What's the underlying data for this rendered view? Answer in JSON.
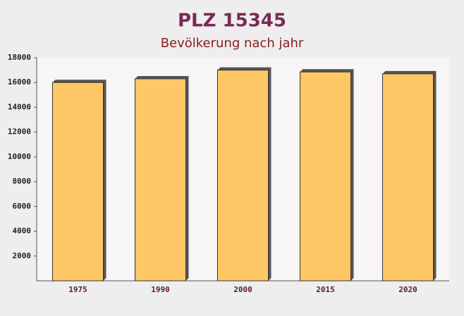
{
  "chart_data": {
    "type": "bar",
    "title": "PLZ 15345",
    "subtitle": "Bevölkerung nach jahr",
    "categories": [
      "1975",
      "1990",
      "2000",
      "2015",
      "2020"
    ],
    "values": [
      16000,
      16300,
      17000,
      16850,
      16700
    ],
    "color": "#ffc766",
    "ylim": [
      0,
      18000
    ],
    "yticks": [
      2000,
      4000,
      6000,
      8000,
      10000,
      12000,
      14000,
      16000,
      18000
    ],
    "grid": false
  }
}
